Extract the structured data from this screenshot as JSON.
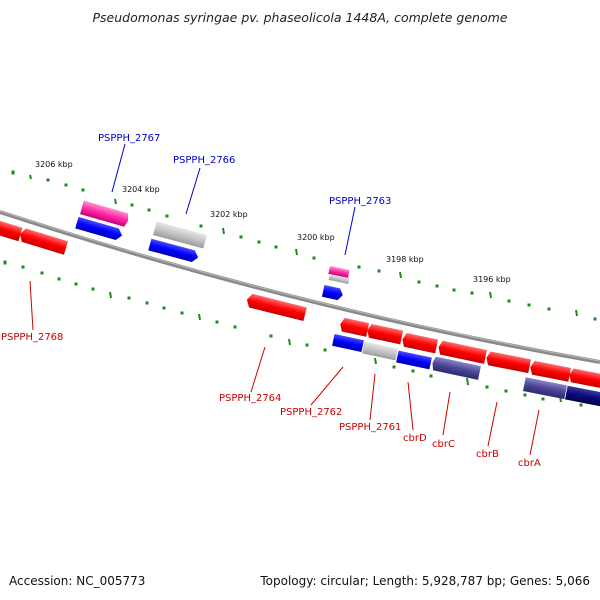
{
  "title": "Pseudomonas syringae pv. phaseolicola 1448A, complete genome",
  "footer": {
    "accession": "Accession: NC_005773",
    "summary": "Topology: circular; Length: 5,928,787 bp; Genes: 5,066"
  },
  "colors": {
    "forward_label": "#0000cc",
    "reverse_label": "#cc0000",
    "tick": "#1e8a1e",
    "backbone": "#888888"
  },
  "ticks": [
    {
      "label": "3206 kbp"
    },
    {
      "label": "3204 kbp"
    },
    {
      "label": "3202 kbp"
    },
    {
      "label": "3200 kbp"
    },
    {
      "label": "3198 kbp"
    },
    {
      "label": "3196 kbp"
    }
  ],
  "gene_labels": [
    {
      "text": "PSPPH_2767",
      "strand": "forward"
    },
    {
      "text": "PSPPH_2766",
      "strand": "forward"
    },
    {
      "text": "PSPPH_2763",
      "strand": "forward"
    },
    {
      "text": "PSPPH_2768",
      "strand": "reverse"
    },
    {
      "text": "PSPPH_2764",
      "strand": "reverse"
    },
    {
      "text": "PSPPH_2762",
      "strand": "reverse"
    },
    {
      "text": "PSPPH_2761",
      "strand": "reverse"
    },
    {
      "text": "cbrD",
      "strand": "reverse"
    },
    {
      "text": "cbrC",
      "strand": "reverse"
    },
    {
      "text": "cbrB",
      "strand": "reverse"
    },
    {
      "text": "cbrA",
      "strand": "reverse"
    }
  ]
}
